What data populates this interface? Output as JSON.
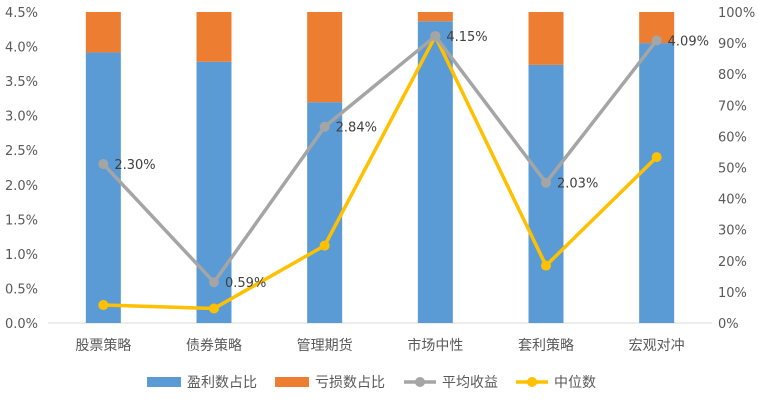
{
  "chart_data": {
    "type": "bar",
    "categories": [
      "股票策略",
      "债券策略",
      "管理期货",
      "市场中性",
      "套利策略",
      "宏观对冲"
    ],
    "left_axis": {
      "ticks": [
        "0.0%",
        "0.5%",
        "1.0%",
        "1.5%",
        "2.0%",
        "2.5%",
        "3.0%",
        "3.5%",
        "4.0%",
        "4.5%"
      ],
      "ylim": [
        0,
        4.5
      ]
    },
    "right_axis": {
      "ticks": [
        "0%",
        "10%",
        "20%",
        "30%",
        "40%",
        "50%",
        "60%",
        "70%",
        "80%",
        "90%",
        "100%"
      ],
      "ylim": [
        0,
        100
      ]
    },
    "series": [
      {
        "name": "盈利数占比",
        "kind": "stacked-bar",
        "axis": "right",
        "color": "#5B9BD5",
        "values": [
          87,
          84,
          71,
          97,
          83,
          90
        ]
      },
      {
        "name": "亏损数占比",
        "kind": "stacked-bar",
        "axis": "right",
        "color": "#ED7D31",
        "values": [
          13,
          16,
          29,
          3,
          17,
          10
        ]
      },
      {
        "name": "平均收益",
        "kind": "line",
        "axis": "left",
        "color": "#A5A5A5",
        "values": [
          2.3,
          0.59,
          2.84,
          4.15,
          2.03,
          4.09
        ],
        "labels": [
          "2.30%",
          "0.59%",
          "2.84%",
          "4.15%",
          "2.03%",
          "4.09%"
        ]
      },
      {
        "name": "中位数",
        "kind": "line",
        "axis": "left",
        "color": "#FFC000",
        "values": [
          0.26,
          0.21,
          1.12,
          4.15,
          0.83,
          2.4
        ]
      }
    ],
    "legend_position": "bottom",
    "grid": false
  }
}
